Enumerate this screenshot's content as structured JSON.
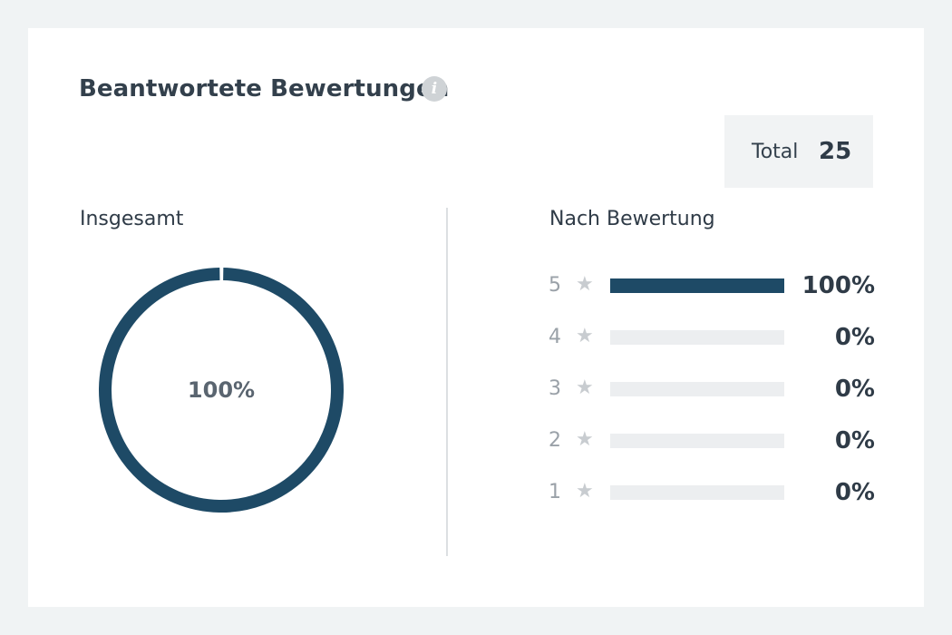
{
  "card": {
    "title": "Beantwortete Bewertungen",
    "info_icon": "info-icon",
    "total_label": "Total",
    "total_value": "25"
  },
  "overall": {
    "label": "Insgesamt",
    "percent_text": "100%",
    "percent_value": 100,
    "color": "#1e4a66"
  },
  "by_rating": {
    "label": "Nach Bewertung",
    "star_icon": "star-icon",
    "bar_color": "#1e4a66",
    "track_color": "#eceef0",
    "rows": [
      {
        "stars": "5",
        "percent_text": "100%",
        "percent_value": 100
      },
      {
        "stars": "4",
        "percent_text": "0%",
        "percent_value": 0
      },
      {
        "stars": "3",
        "percent_text": "0%",
        "percent_value": 0
      },
      {
        "stars": "2",
        "percent_text": "0%",
        "percent_value": 0
      },
      {
        "stars": "1",
        "percent_text": "0%",
        "percent_value": 0
      }
    ]
  }
}
